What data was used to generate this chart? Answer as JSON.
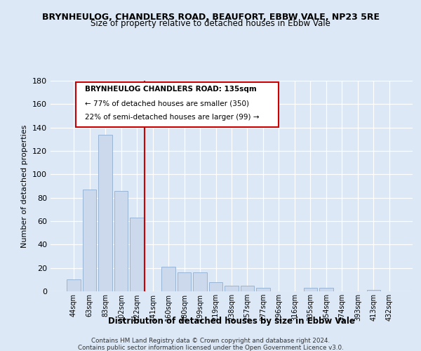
{
  "title": "BRYNHEULOG, CHANDLERS ROAD, BEAUFORT, EBBW VALE, NP23 5RE",
  "subtitle": "Size of property relative to detached houses in Ebbw Vale",
  "xlabel": "Distribution of detached houses by size in Ebbw Vale",
  "ylabel": "Number of detached properties",
  "bar_labels": [
    "44sqm",
    "63sqm",
    "83sqm",
    "102sqm",
    "122sqm",
    "141sqm",
    "160sqm",
    "180sqm",
    "199sqm",
    "219sqm",
    "238sqm",
    "257sqm",
    "277sqm",
    "296sqm",
    "316sqm",
    "335sqm",
    "354sqm",
    "374sqm",
    "393sqm",
    "413sqm",
    "432sqm"
  ],
  "bar_values": [
    10,
    87,
    134,
    86,
    63,
    0,
    21,
    16,
    16,
    8,
    5,
    5,
    3,
    0,
    0,
    3,
    3,
    0,
    0,
    1,
    0
  ],
  "bar_color": "#ccd9ec",
  "bar_edge_color": "#9ab5d4",
  "vline_color": "#cc0000",
  "annotation_title": "BRYNHEULOG CHANDLERS ROAD: 135sqm",
  "annotation_line1": "← 77% of detached houses are smaller (350)",
  "annotation_line2": "22% of semi-detached houses are larger (99) →",
  "ylim": [
    0,
    180
  ],
  "yticks": [
    0,
    20,
    40,
    60,
    80,
    100,
    120,
    140,
    160,
    180
  ],
  "footer1": "Contains HM Land Registry data © Crown copyright and database right 2024.",
  "footer2": "Contains public sector information licensed under the Open Government Licence v3.0.",
  "background_color": "#dce8f5",
  "plot_background": "#dce8f5"
}
